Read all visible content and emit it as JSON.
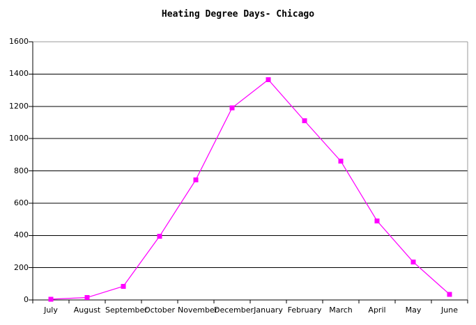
{
  "chart_data": {
    "type": "line",
    "title": "Heating Degree Days- Chicago",
    "categories": [
      "July",
      "August",
      "September",
      "October",
      "November",
      "December",
      "January",
      "February",
      "March",
      "April",
      "May",
      "June"
    ],
    "values": [
      5,
      15,
      85,
      395,
      745,
      1190,
      1365,
      1110,
      860,
      490,
      235,
      35
    ],
    "xlabel": "",
    "ylabel": "",
    "ylim": [
      0,
      1600
    ],
    "ytick_step": 200,
    "ytick_labels": [
      "0",
      "200",
      "400",
      "600",
      "800",
      "1000",
      "1200",
      "1400",
      "1600"
    ],
    "grid": "horizontal",
    "legend_position": "none",
    "line_color": "#FF00FF",
    "marker": "square",
    "marker_color": "#FF00FF",
    "axis_color": "#000000",
    "gridline_color": "#000000",
    "border_color": "#999999",
    "background_color": "#FFFFFF"
  }
}
